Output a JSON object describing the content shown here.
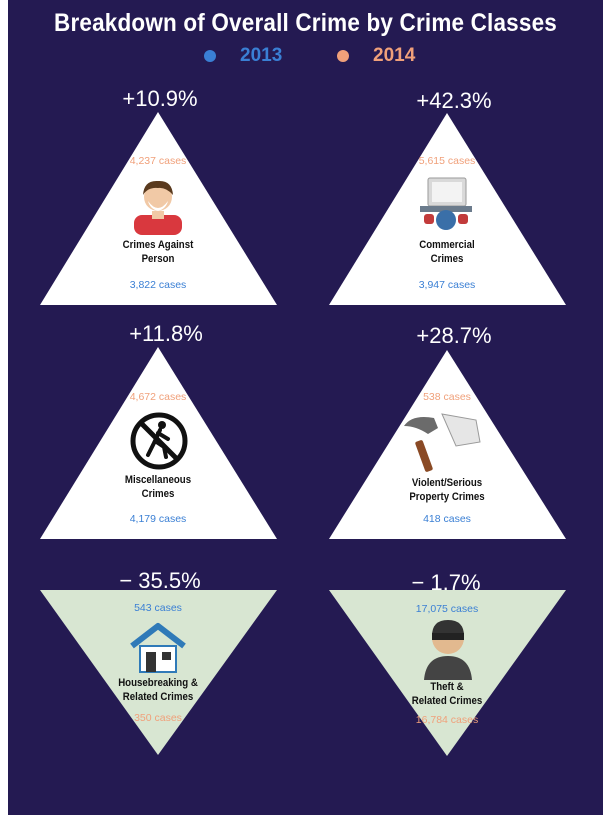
{
  "title": "Breakdown of Overall Crime by Crime Classes",
  "legend": [
    {
      "label": "2013",
      "color": "#3a7fd4"
    },
    {
      "label": "2014",
      "color": "#f0a07a"
    }
  ],
  "colors": {
    "background": "#241a52",
    "increase_fill": "#ffffff",
    "decrease_fill": "#d8e6d2",
    "text_2013": "#3a7fd4",
    "text_2014": "#f0a07a"
  },
  "chart_data": {
    "type": "table",
    "columns": [
      "2013",
      "2014"
    ],
    "rows": [
      {
        "category": "Crimes Against Person",
        "change": "+10.9%",
        "direction": "increase",
        "cases_2013": 3822,
        "cases_2014": 4237,
        "label_2013": "3,822 cases",
        "label_2014": "4,237 cases",
        "icon": "person-icon"
      },
      {
        "category": "Commercial Crimes",
        "change": "+42.3%",
        "direction": "increase",
        "cases_2013": 3947,
        "cases_2014": 5615,
        "label_2013": "3,947 cases",
        "label_2014": "5,615 cases",
        "icon": "computer-desk-icon"
      },
      {
        "category": "Miscellaneous Crimes",
        "change": "+11.8%",
        "direction": "increase",
        "cases_2013": 4179,
        "cases_2014": 4672,
        "label_2013": "4,179 cases",
        "label_2014": "4,672 cases",
        "icon": "no-walking-icon"
      },
      {
        "category": "Violent/Serious Property Crimes",
        "change": "+28.7%",
        "direction": "increase",
        "cases_2013": 418,
        "cases_2014": 538,
        "label_2013": "418 cases",
        "label_2014": "538 cases",
        "icon": "hammer-cleaver-icon"
      },
      {
        "category": "Housebreaking & Related Crimes",
        "change": "− 35.5%",
        "direction": "decrease",
        "cases_2013": 543,
        "cases_2014": 350,
        "label_2013": "543 cases",
        "label_2014": "350 cases",
        "icon": "house-icon"
      },
      {
        "category": "Theft & Related Crimes",
        "change": "− 1.7%",
        "direction": "decrease",
        "cases_2013": 17075,
        "cases_2014": 16784,
        "label_2013": "17,075 cases",
        "label_2014": "16,784 cases",
        "icon": "thief-icon"
      }
    ]
  },
  "labels": {
    "cat0_line1": "Crimes Against",
    "cat0_line2": "Person",
    "cat1_line1": "Commercial",
    "cat1_line2": "Crimes",
    "cat2_line1": "Miscellaneous",
    "cat2_line2": "Crimes",
    "cat3_line1": "Violent/Serious",
    "cat3_line2": "Property Crimes",
    "cat4_line1": "Housebreaking &",
    "cat4_line2": "Related Crimes",
    "cat5_line1": "Theft &",
    "cat5_line2": "Related Crimes"
  }
}
